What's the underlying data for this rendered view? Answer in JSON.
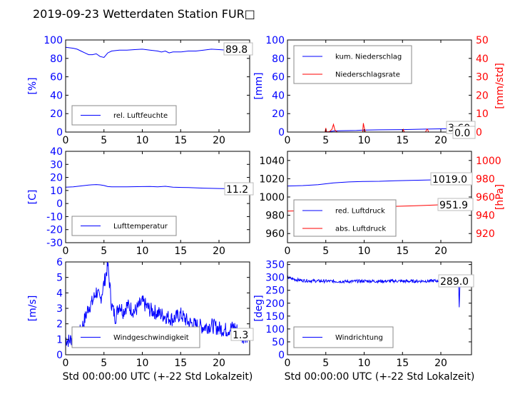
{
  "title": "2019-09-23 Wetterdaten Station FUR□",
  "xlabel": "Std 00:00:00 UTC (+-22 Std Lokalzeit)",
  "colors": {
    "blue": "#0000ff",
    "red": "#ff0000",
    "black": "#000000"
  },
  "chart_data": [
    {
      "id": "humidity",
      "type": "line",
      "ylabel": "[%]",
      "ylim": [
        0,
        100
      ],
      "yticks": [
        0,
        20,
        40,
        60,
        80,
        100
      ],
      "xlim": [
        0,
        24
      ],
      "xticks": [
        0,
        5,
        10,
        15,
        20
      ],
      "legend_placement": "lower-left",
      "annotation": "89.8",
      "series": [
        {
          "name": "rel. Luftfeuchte",
          "color": "blue",
          "x": [
            0,
            1,
            1.5,
            2,
            2.5,
            3,
            3.5,
            4,
            4.5,
            5,
            5.5,
            6,
            7,
            8,
            9,
            10,
            11,
            12,
            12.5,
            13,
            13.5,
            14,
            15,
            16,
            17,
            18,
            19,
            20,
            21,
            22,
            23,
            24
          ],
          "y": [
            92,
            91,
            90,
            88,
            86,
            84,
            84,
            85,
            82,
            81,
            86,
            88,
            89,
            89,
            89.5,
            90,
            89,
            88,
            87,
            88,
            86,
            87,
            87,
            88,
            88,
            89,
            90,
            89.5,
            89,
            89.5,
            89.8,
            89.8
          ]
        }
      ]
    },
    {
      "id": "precipitation",
      "type": "line",
      "ylabel": "[mm]",
      "ylabel_right": "[mm/std]",
      "ylim": [
        0,
        100
      ],
      "yticks": [
        0,
        20,
        40,
        60,
        80,
        100
      ],
      "ylim_right": [
        0,
        50
      ],
      "yticks_right": [
        0,
        10,
        20,
        30,
        40,
        50
      ],
      "xlim": [
        0,
        24
      ],
      "xticks": [
        0,
        5,
        10,
        15,
        20
      ],
      "legend_placement": "upper-left",
      "annotations": [
        "3.60",
        "0.0"
      ],
      "series": [
        {
          "name": "kum. Niederschlag",
          "color": "blue",
          "axis": "left",
          "x": [
            0,
            5,
            5.5,
            6,
            7,
            9,
            10,
            12,
            15,
            16,
            18,
            20,
            22,
            24
          ],
          "y": [
            0,
            0,
            0.5,
            1.2,
            1.5,
            1.8,
            2.2,
            2.4,
            2.6,
            2.8,
            3.2,
            3.5,
            3.6,
            3.6
          ]
        },
        {
          "name": "Niederschlagsrate",
          "color": "red",
          "axis": "right",
          "x": [
            0,
            4.9,
            5.0,
            5.1,
            5.2,
            5.5,
            5.8,
            6.0,
            6.2,
            6.5,
            7,
            9.8,
            9.9,
            10.0,
            10.1,
            10.2,
            12,
            15,
            15.1,
            15.2,
            15.3,
            18,
            18.2,
            18.3,
            18.4,
            20,
            24
          ],
          "y": [
            0,
            0,
            2.2,
            0.2,
            0,
            0.3,
            1.5,
            4.2,
            1,
            0,
            0,
            0,
            4.8,
            2.5,
            1,
            0,
            0,
            0,
            1.4,
            0.3,
            0,
            0,
            1.6,
            1.2,
            0,
            0,
            0
          ]
        }
      ]
    },
    {
      "id": "temperature",
      "type": "line",
      "ylabel": "[C]",
      "ylim": [
        -30,
        40
      ],
      "yticks": [
        -30,
        -20,
        -10,
        0,
        10,
        20,
        30,
        40
      ],
      "xlim": [
        0,
        24
      ],
      "xticks": [
        0,
        5,
        10,
        15,
        20
      ],
      "legend_placement": "lower-left",
      "annotation": "11.2",
      "series": [
        {
          "name": "Lufttemperatur",
          "color": "blue",
          "x": [
            0,
            1,
            2,
            3,
            4,
            4.5,
            5,
            5.5,
            6,
            8,
            10,
            11,
            12,
            13,
            14,
            16,
            18,
            20,
            22,
            24
          ],
          "y": [
            12.5,
            12.8,
            13.5,
            14.2,
            14.5,
            14.3,
            13.8,
            13,
            12.8,
            12.8,
            13,
            13.1,
            12.8,
            13.2,
            12.5,
            12.2,
            11.8,
            11.5,
            11.3,
            11.2
          ]
        }
      ]
    },
    {
      "id": "pressure",
      "type": "line",
      "ylabel_right": "[hPa]",
      "ylim": [
        950,
        1050
      ],
      "yticks": [
        960,
        980,
        1000,
        1020,
        1040
      ],
      "ylim_right": [
        910,
        1010
      ],
      "yticks_right": [
        920,
        940,
        960,
        980,
        1000
      ],
      "xlim": [
        0,
        24
      ],
      "xticks": [
        0,
        5,
        10,
        15,
        20
      ],
      "legend_placement": "lower-left",
      "annotations": [
        "1019.0",
        "951.9"
      ],
      "series": [
        {
          "name": "red. Luftdruck",
          "color": "blue",
          "axis": "left",
          "x": [
            0,
            2,
            4,
            6,
            8,
            10,
            12,
            14,
            16,
            18,
            20,
            22,
            24
          ],
          "y": [
            1012,
            1012.5,
            1013.5,
            1015.5,
            1016.5,
            1017,
            1017.2,
            1017.8,
            1018.2,
            1018.6,
            1019,
            1019,
            1019
          ]
        },
        {
          "name": "abs. Luftdruck",
          "color": "red",
          "axis": "right",
          "x": [
            0,
            2,
            4,
            6,
            8,
            10,
            12,
            14,
            16,
            18,
            20,
            22,
            24
          ],
          "y": [
            944.5,
            945,
            946,
            947.5,
            948.5,
            949,
            949.3,
            949.8,
            950.2,
            950.8,
            951.5,
            951.9,
            951.9
          ]
        }
      ]
    },
    {
      "id": "windspeed",
      "type": "line",
      "ylabel": "[m/s]",
      "ylim": [
        0,
        6
      ],
      "yticks": [
        0,
        1,
        2,
        3,
        4,
        5,
        6
      ],
      "xlim": [
        0,
        24
      ],
      "xticks": [
        0,
        5,
        10,
        15,
        20
      ],
      "legend_placement": "lower-left",
      "annotation": "1.3",
      "series": [
        {
          "name": "Windgeschwindigkeit",
          "color": "blue",
          "x": [
            0,
            0.5,
            1,
            1.5,
            2,
            2.5,
            3,
            3.5,
            4,
            4.5,
            5,
            5.5,
            6,
            6.5,
            7,
            7.5,
            8,
            9,
            10,
            11,
            12,
            13,
            14,
            15,
            16,
            17,
            18,
            19,
            20,
            21,
            22,
            23,
            24
          ],
          "y": [
            1.0,
            0.9,
            1.2,
            1.0,
            1.6,
            2.3,
            3.1,
            3.4,
            4.1,
            3.5,
            4.6,
            5.8,
            3.2,
            2.4,
            3.3,
            2.8,
            3.2,
            2.8,
            3.4,
            2.9,
            2.7,
            2.5,
            2.3,
            2.6,
            2.1,
            1.9,
            1.8,
            1.9,
            1.7,
            1.6,
            1.8,
            1.2,
            1.3
          ],
          "noise": 0.5
        }
      ]
    },
    {
      "id": "winddirection",
      "type": "line",
      "ylabel": "[deg]",
      "ylim": [
        0,
        360
      ],
      "yticks": [
        0,
        50,
        100,
        150,
        200,
        250,
        300,
        350
      ],
      "xlim": [
        0,
        24
      ],
      "xticks": [
        0,
        5,
        10,
        15,
        20
      ],
      "legend_placement": "lower-left",
      "annotation": "289.0",
      "series": [
        {
          "name": "Windrichtung",
          "color": "blue",
          "x": [
            0,
            0.5,
            1,
            2,
            4,
            6,
            8,
            10,
            12,
            14,
            16,
            18,
            20,
            21,
            22,
            22.3,
            22.4,
            22.5,
            23,
            24
          ],
          "y": [
            300,
            295,
            292,
            288,
            286,
            285,
            284,
            286,
            285,
            286,
            285,
            286,
            287,
            288,
            290,
            290,
            190,
            285,
            290,
            289
          ],
          "noise": 6
        }
      ]
    }
  ]
}
